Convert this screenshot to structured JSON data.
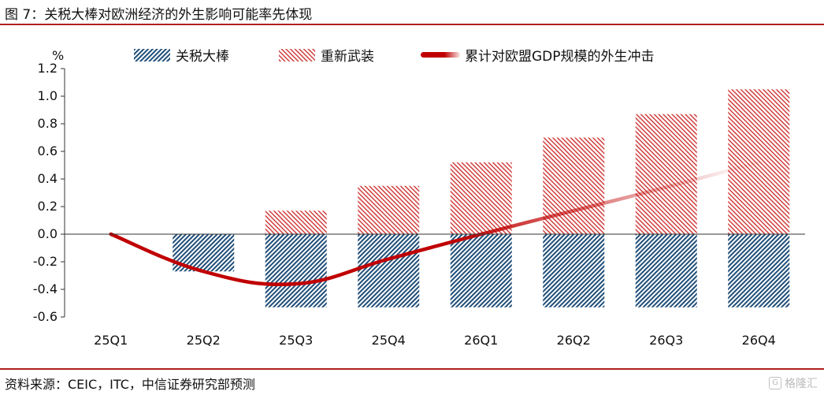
{
  "header": {
    "title": "图 7：关税大棒对欧洲经济的外生影响可能率先体现"
  },
  "footer": {
    "source": "资料来源：CEIC，ITC，中信证券研究部预测",
    "watermark": "格隆汇"
  },
  "colors": {
    "tariff": "#1f4e79",
    "rearm": "#c0302f",
    "line": "#c00000",
    "rule": "#b21f1f"
  },
  "chart_data": {
    "type": "bar",
    "categories": [
      "25Q1",
      "25Q2",
      "25Q3",
      "25Q4",
      "26Q1",
      "26Q2",
      "26Q3",
      "26Q4"
    ],
    "ylabel": "%",
    "ylim": [
      -0.6,
      1.2
    ],
    "yticks": [
      1.2,
      1.0,
      0.8,
      0.6,
      0.4,
      0.2,
      0.0,
      -0.2,
      -0.4,
      -0.6
    ],
    "ytick_labels": [
      "1.2",
      "1.0",
      "0.8",
      "0.6",
      "0.4",
      "0.2",
      "0.0",
      "-0.2",
      "-0.4",
      "-0.6"
    ],
    "grid": false,
    "legend_position": "top",
    "series": [
      {
        "name": "关税大棒",
        "kind": "bar",
        "values": [
          0.0,
          -0.27,
          -0.53,
          -0.53,
          -0.53,
          -0.53,
          -0.53,
          -0.53
        ],
        "color": "#1f4e79"
      },
      {
        "name": "重新武装",
        "kind": "bar",
        "values": [
          0.0,
          0.0,
          0.17,
          0.35,
          0.52,
          0.7,
          0.87,
          1.05
        ],
        "color": "#c0302f"
      },
      {
        "name": "累计对欧盟GDP规模的外生冲击",
        "kind": "line",
        "values": [
          0.0,
          -0.27,
          -0.36,
          -0.18,
          0.0,
          0.17,
          0.34,
          0.52
        ],
        "color": "#c00000"
      }
    ]
  }
}
